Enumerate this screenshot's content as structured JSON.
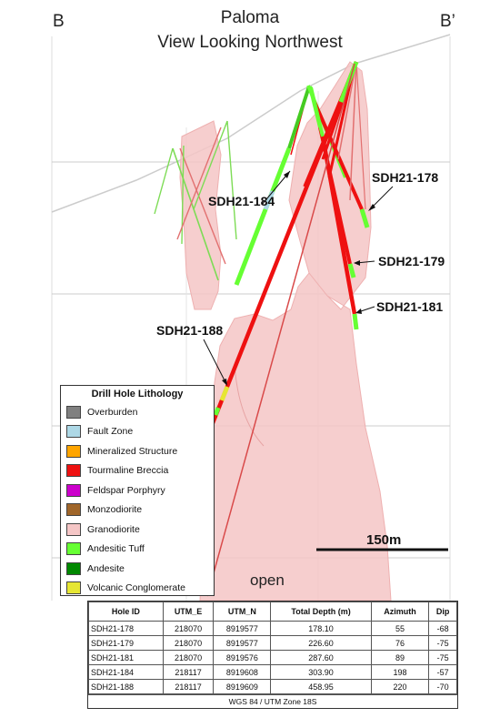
{
  "header": {
    "project": "Paloma",
    "view": "View Looking Northwest",
    "section_start": "B",
    "section_end": "B’"
  },
  "hole_labels": {
    "h184": "SDH21-184",
    "h178": "SDH21-178",
    "h179": "SDH21-179",
    "h181": "SDH21-181",
    "h188": "SDH21-188"
  },
  "open_label": "open",
  "scale_bar": {
    "label": "150m"
  },
  "legend": {
    "title": "Drill Hole Lithology",
    "items": [
      {
        "label": "Overburden",
        "color": "#808080"
      },
      {
        "label": "Fault Zone",
        "color": "#add8e6"
      },
      {
        "label": "Mineralized Structure",
        "color": "#ffa500"
      },
      {
        "label": "Tourmaline Breccia",
        "color": "#ee1111"
      },
      {
        "label": "Feldspar Porphyry",
        "color": "#cc00cc"
      },
      {
        "label": "Monzodiorite",
        "color": "#a0662a"
      },
      {
        "label": "Granodiorite",
        "color": "#f5c6c6"
      },
      {
        "label": "Andesitic Tuff",
        "color": "#66ff33"
      },
      {
        "label": "Andesite",
        "color": "#008800"
      },
      {
        "label": "Volcanic Conglomerate",
        "color": "#e6e633"
      }
    ]
  },
  "collar_table": {
    "headers": [
      "Hole ID",
      "UTM_E",
      "UTM_N",
      "Total Depth (m)",
      "Azimuth",
      "Dip"
    ],
    "rows": [
      [
        "SDH21-178",
        "218070",
        "8919577",
        "178.10",
        "55",
        "-68"
      ],
      [
        "SDH21-179",
        "218070",
        "8919577",
        "226.60",
        "76",
        "-75"
      ],
      [
        "SDH21-181",
        "218070",
        "8919576",
        "287.60",
        "89",
        "-75"
      ],
      [
        "SDH21-184",
        "218117",
        "8919608",
        "303.90",
        "198",
        "-57"
      ],
      [
        "SDH21-188",
        "218117",
        "8919609",
        "458.95",
        "220",
        "-70"
      ]
    ],
    "footer": "WGS 84 / UTM Zone 18S"
  }
}
